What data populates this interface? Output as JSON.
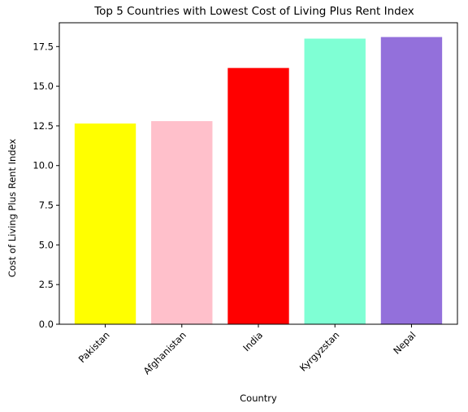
{
  "chart_data": {
    "type": "bar",
    "title": "Top 5 Countries with Lowest Cost of Living Plus Rent Index",
    "xlabel": "Country",
    "ylabel": "Cost of Living Plus Rent Index",
    "categories": [
      "Pakistan",
      "Afghanistan",
      "India",
      "Kyrgyzstan",
      "Nepal"
    ],
    "values": [
      12.65,
      12.8,
      16.15,
      18.0,
      18.1
    ],
    "colors": [
      "#ffff00",
      "#ffc0cb",
      "#ff0000",
      "#7fffd4",
      "#9370db"
    ],
    "ylim": [
      0,
      19.0
    ],
    "yticks": [
      0.0,
      2.5,
      5.0,
      7.5,
      10.0,
      12.5,
      15.0,
      17.5
    ],
    "ytick_labels": [
      "0.0",
      "2.5",
      "5.0",
      "7.5",
      "10.0",
      "12.5",
      "15.0",
      "17.5"
    ],
    "grid": false,
    "legend": "none"
  }
}
